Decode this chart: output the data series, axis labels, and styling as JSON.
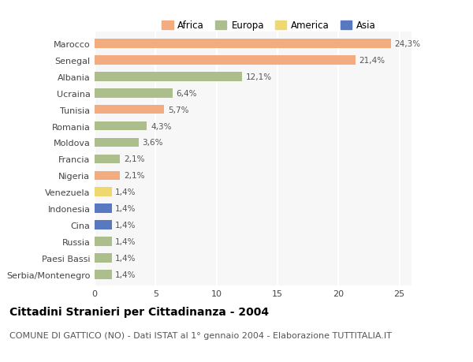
{
  "countries": [
    "Marocco",
    "Senegal",
    "Albania",
    "Ucraina",
    "Tunisia",
    "Romania",
    "Moldova",
    "Francia",
    "Nigeria",
    "Venezuela",
    "Indonesia",
    "Cina",
    "Russia",
    "Paesi Bassi",
    "Serbia/Montenegro"
  ],
  "values": [
    24.3,
    21.4,
    12.1,
    6.4,
    5.7,
    4.3,
    3.6,
    2.1,
    2.1,
    1.4,
    1.4,
    1.4,
    1.4,
    1.4,
    1.4
  ],
  "labels": [
    "24,3%",
    "21,4%",
    "12,1%",
    "6,4%",
    "5,7%",
    "4,3%",
    "3,6%",
    "2,1%",
    "2,1%",
    "1,4%",
    "1,4%",
    "1,4%",
    "1,4%",
    "1,4%",
    "1,4%"
  ],
  "continents": [
    "Africa",
    "Africa",
    "Europa",
    "Europa",
    "Africa",
    "Europa",
    "Europa",
    "Europa",
    "Africa",
    "America",
    "Asia",
    "Asia",
    "Europa",
    "Europa",
    "Europa"
  ],
  "colors": {
    "Africa": "#F2AC80",
    "Europa": "#ABBE8C",
    "America": "#F0D870",
    "Asia": "#5878C0"
  },
  "legend_labels": [
    "Africa",
    "Europa",
    "America",
    "Asia"
  ],
  "legend_colors": [
    "#F2AC80",
    "#ABBE8C",
    "#F0D870",
    "#5878C0"
  ],
  "title": "Cittadini Stranieri per Cittadinanza - 2004",
  "subtitle": "COMUNE DI GATTICO (NO) - Dati ISTAT al 1° gennaio 2004 - Elaborazione TUTTITALIA.IT",
  "xlim": [
    0,
    26
  ],
  "xticks": [
    0,
    5,
    10,
    15,
    20,
    25
  ],
  "bg_color": "#ffffff",
  "plot_bg_color": "#f7f7f7",
  "grid_color": "#ffffff",
  "bar_height": 0.55,
  "title_fontsize": 10,
  "subtitle_fontsize": 8,
  "label_fontsize": 7.5,
  "tick_fontsize": 8,
  "legend_fontsize": 8.5
}
